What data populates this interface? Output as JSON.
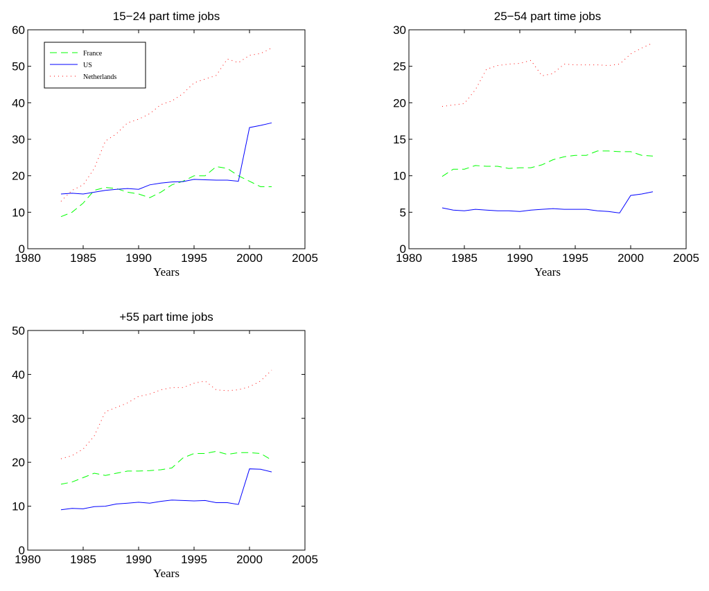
{
  "chart_data": [
    {
      "type": "line",
      "title": "15−24 part time jobs",
      "xlabel": "Years",
      "ylabel": "",
      "xlim": [
        1980,
        2005
      ],
      "ylim": [
        0,
        60
      ],
      "xticks": [
        1980,
        1985,
        1990,
        1995,
        2000,
        2005
      ],
      "yticks": [
        0,
        10,
        20,
        30,
        40,
        50,
        60
      ],
      "grid": false,
      "legend": {
        "position": "top-left",
        "entries": [
          "France",
          "US",
          "Netherlands"
        ]
      },
      "x": [
        1983,
        1984,
        1985,
        1986,
        1987,
        1988,
        1989,
        1990,
        1991,
        1992,
        1993,
        1994,
        1995,
        1996,
        1997,
        1998,
        1999,
        2000,
        2001,
        2002
      ],
      "series": [
        {
          "name": "France",
          "color": "#00ff00",
          "style": "dashed",
          "values": [
            8.8,
            10.0,
            12.5,
            16.0,
            16.8,
            16.5,
            15.5,
            15.0,
            14.0,
            15.5,
            17.5,
            18.5,
            20.0,
            20.0,
            22.5,
            22.0,
            20.0,
            18.5,
            17.0,
            17.0
          ]
        },
        {
          "name": "US",
          "color": "#0000ff",
          "style": "solid",
          "values": [
            15.0,
            15.2,
            15.0,
            15.5,
            16.0,
            16.3,
            16.5,
            16.3,
            17.5,
            18.0,
            18.3,
            18.4,
            19.0,
            18.9,
            18.8,
            18.8,
            18.5,
            33.2,
            33.8,
            34.5
          ]
        },
        {
          "name": "Netherlands",
          "color": "#ff0000",
          "style": "dotted",
          "values": [
            13.0,
            16.0,
            17.5,
            22.0,
            29.5,
            31.5,
            34.5,
            35.5,
            37.0,
            39.5,
            40.5,
            42.5,
            45.5,
            46.5,
            47.5,
            52.0,
            51.0,
            53.0,
            53.5,
            55.0
          ]
        }
      ]
    },
    {
      "type": "line",
      "title": "25−54 part time jobs",
      "xlabel": "Years",
      "ylabel": "",
      "xlim": [
        1980,
        2005
      ],
      "ylim": [
        0,
        30
      ],
      "xticks": [
        1980,
        1985,
        1990,
        1995,
        2000,
        2005
      ],
      "yticks": [
        0,
        5,
        10,
        15,
        20,
        25,
        30
      ],
      "grid": false,
      "x": [
        1983,
        1984,
        1985,
        1986,
        1987,
        1988,
        1989,
        1990,
        1991,
        1992,
        1993,
        1994,
        1995,
        1996,
        1997,
        1998,
        1999,
        2000,
        2001,
        2002
      ],
      "series": [
        {
          "name": "France",
          "color": "#00ff00",
          "style": "dashed",
          "values": [
            9.9,
            10.9,
            10.9,
            11.4,
            11.3,
            11.3,
            11.0,
            11.1,
            11.1,
            11.5,
            12.2,
            12.6,
            12.8,
            12.8,
            13.4,
            13.4,
            13.3,
            13.3,
            12.8,
            12.7
          ]
        },
        {
          "name": "US",
          "color": "#0000ff",
          "style": "solid",
          "values": [
            5.6,
            5.3,
            5.2,
            5.4,
            5.3,
            5.2,
            5.2,
            5.1,
            5.3,
            5.4,
            5.5,
            5.4,
            5.4,
            5.4,
            5.2,
            5.1,
            4.9,
            7.3,
            7.5,
            7.8
          ]
        },
        {
          "name": "Netherlands",
          "color": "#ff0000",
          "style": "dotted",
          "values": [
            19.5,
            19.7,
            19.9,
            21.8,
            24.6,
            25.1,
            25.3,
            25.4,
            25.8,
            23.7,
            24.0,
            25.3,
            25.2,
            25.2,
            25.2,
            25.1,
            25.3,
            26.7,
            27.5,
            28.2
          ]
        }
      ]
    },
    {
      "type": "line",
      "title": "+55 part time jobs",
      "xlabel": "Years",
      "ylabel": "",
      "xlim": [
        1980,
        2005
      ],
      "ylim": [
        0,
        50
      ],
      "xticks": [
        1980,
        1985,
        1990,
        1995,
        2000,
        2005
      ],
      "yticks": [
        0,
        10,
        20,
        30,
        40,
        50
      ],
      "grid": false,
      "x": [
        1983,
        1984,
        1985,
        1986,
        1987,
        1988,
        1989,
        1990,
        1991,
        1992,
        1993,
        1994,
        1995,
        1996,
        1997,
        1998,
        1999,
        2000,
        2001,
        2002
      ],
      "series": [
        {
          "name": "France",
          "color": "#00ff00",
          "style": "dashed",
          "values": [
            15.0,
            15.5,
            16.5,
            17.5,
            17.0,
            17.5,
            18.0,
            18.0,
            18.1,
            18.3,
            18.7,
            21.0,
            22.0,
            22.0,
            22.5,
            21.8,
            22.2,
            22.2,
            22.0,
            20.5
          ]
        },
        {
          "name": "US",
          "color": "#0000ff",
          "style": "solid",
          "values": [
            9.2,
            9.5,
            9.4,
            9.9,
            10.0,
            10.5,
            10.7,
            10.9,
            10.7,
            11.1,
            11.4,
            11.3,
            11.2,
            11.3,
            10.8,
            10.8,
            10.4,
            18.5,
            18.4,
            17.8
          ]
        },
        {
          "name": "Netherlands",
          "color": "#ff0000",
          "style": "dotted",
          "values": [
            20.8,
            21.5,
            23.0,
            26.0,
            31.5,
            32.5,
            33.5,
            35.0,
            35.5,
            36.5,
            37.0,
            37.0,
            38.0,
            38.5,
            36.5,
            36.3,
            36.5,
            37.2,
            38.5,
            41.0
          ]
        }
      ]
    }
  ]
}
